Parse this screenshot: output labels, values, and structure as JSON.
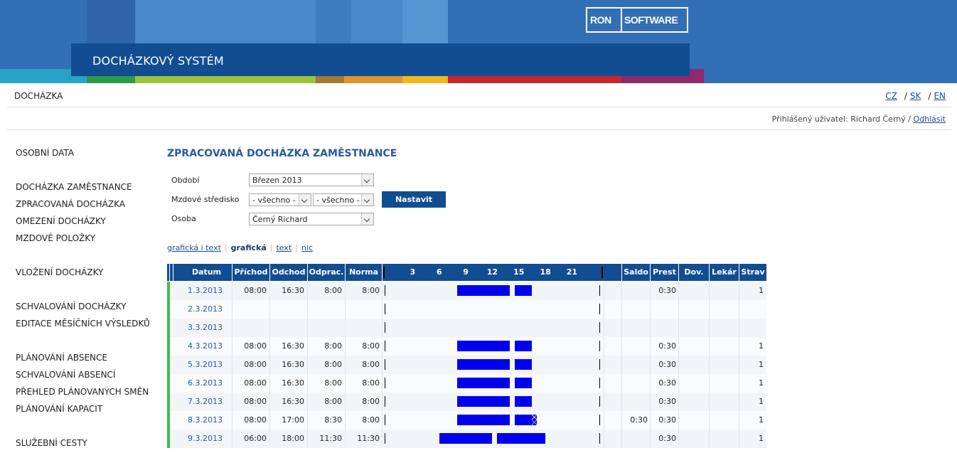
{
  "header": {
    "title": "DOCHÁZKOVÝ SYSTÉM",
    "logo_left": "RON",
    "logo_right": "SOFTWARE"
  },
  "topbar": {
    "section": "DOCHÁZKA",
    "languages": [
      "CZ",
      "SK",
      "EN"
    ],
    "lang_separator": "/"
  },
  "user": {
    "prefix": "Přihlášený uživatel: Richard Černý /",
    "logout": "Odhlásit"
  },
  "sidebar": {
    "items": [
      "OSOBNÍ DATA",
      "DOCHÁZKA ZAMĚSTNANCE",
      "ZPRACOVANÁ DOCHÁZKA",
      "OMEZENÍ DOCHÁZKY",
      "MZDOVÉ POLOŽKY",
      "VLOŽENÍ DOCHÁZKY",
      "SCHVALOVÁNÍ DOCHÁZKY",
      "EDITACE MĚSÍČNÍCH VÝSLEDKŮ",
      "PLÁNOVÁNÍ ABSENCE",
      "SCHVALOVÁNÍ ABSENCÍ",
      "PŘEHLED PLÁNOVANÝCH SMĚN",
      "PLÁNOVÁNÍ KAPACIT",
      "SLUŽEBNÍ CESTY"
    ]
  },
  "main": {
    "title": "ZPRACOVANÁ DOCHÁZKA ZAMĚSTNANCE",
    "form": {
      "period_label": "Období",
      "period_value": "Březen 2013",
      "center_label": "Mzdové středisko",
      "center_value_1": "- všechno -",
      "center_value_2": "- všechno -",
      "person_label": "Osoba",
      "person_value": "Černý Richard",
      "submit": "Nastavit"
    },
    "modes": {
      "graphic_text": "grafická i text",
      "graphic": "grafická",
      "text": "text",
      "none": "nic",
      "selected": "grafická"
    }
  },
  "table": {
    "columns": {
      "date": "Datum",
      "arrival": "Příchod",
      "departure": "Odchod",
      "worked": "Odprac.",
      "norm": "Norma",
      "saldo": "Saldo",
      "breaks": "Prest",
      "vacation": "Dov.",
      "doctor": "Lekár",
      "meals": "Strav"
    },
    "hour_ticks": [
      "3",
      "6",
      "9",
      "12",
      "15",
      "18",
      "21"
    ],
    "rows": [
      {
        "date": "1.3.2013",
        "in": "08:00",
        "out": "16:30",
        "worked": "8:00",
        "norm": "8:00",
        "saldo": "",
        "breaks": "0:30",
        "vac": "",
        "doc": "",
        "meals": "1",
        "status": "work",
        "bars": [
          [
            8,
            14
          ],
          [
            14.5,
            16.5
          ]
        ],
        "hatch": false
      },
      {
        "date": "2.3.2013",
        "in": "",
        "out": "",
        "worked": "",
        "norm": "",
        "saldo": "",
        "breaks": "",
        "vac": "",
        "doc": "",
        "meals": "",
        "status": "weekend",
        "bars": [],
        "hatch": false
      },
      {
        "date": "3.3.2013",
        "in": "",
        "out": "",
        "worked": "",
        "norm": "",
        "saldo": "",
        "breaks": "",
        "vac": "",
        "doc": "",
        "meals": "",
        "status": "weekend",
        "bars": [],
        "hatch": false
      },
      {
        "date": "4.3.2013",
        "in": "08:00",
        "out": "16:30",
        "worked": "8:00",
        "norm": "8:00",
        "saldo": "",
        "breaks": "0:30",
        "vac": "",
        "doc": "",
        "meals": "1",
        "status": "work",
        "bars": [
          [
            8,
            14
          ],
          [
            14.5,
            16.5
          ]
        ],
        "hatch": false
      },
      {
        "date": "5.3.2013",
        "in": "08:00",
        "out": "16:30",
        "worked": "8:00",
        "norm": "8:00",
        "saldo": "",
        "breaks": "0:30",
        "vac": "",
        "doc": "",
        "meals": "1",
        "status": "work",
        "bars": [
          [
            8,
            14
          ],
          [
            14.5,
            16.5
          ]
        ],
        "hatch": false
      },
      {
        "date": "6.3.2013",
        "in": "08:00",
        "out": "16:30",
        "worked": "8:00",
        "norm": "8:00",
        "saldo": "",
        "breaks": "0:30",
        "vac": "",
        "doc": "",
        "meals": "1",
        "status": "work",
        "bars": [
          [
            8,
            14
          ],
          [
            14.5,
            16.5
          ]
        ],
        "hatch": false
      },
      {
        "date": "7.3.2013",
        "in": "08:00",
        "out": "16:30",
        "worked": "8:00",
        "norm": "8:00",
        "saldo": "",
        "breaks": "0:30",
        "vac": "",
        "doc": "",
        "meals": "1",
        "status": "work",
        "bars": [
          [
            8,
            14
          ],
          [
            14.5,
            16.5
          ]
        ],
        "hatch": false
      },
      {
        "date": "8.3.2013",
        "in": "08:00",
        "out": "17:00",
        "worked": "8:30",
        "norm": "8:00",
        "saldo": "0:30",
        "breaks": "0:30",
        "vac": "",
        "doc": "",
        "meals": "1",
        "status": "work",
        "bars": [
          [
            8,
            14
          ],
          [
            14.5,
            17
          ]
        ],
        "hatch": true
      },
      {
        "date": "9.3.2013",
        "in": "06:00",
        "out": "18:00",
        "worked": "11:30",
        "norm": "11:30",
        "saldo": "",
        "breaks": "0:30",
        "vac": "",
        "doc": "",
        "meals": "1",
        "status": "work",
        "bars": [
          [
            6,
            12
          ],
          [
            12.5,
            18
          ]
        ],
        "hatch": false
      }
    ]
  },
  "colors": {
    "header_blue": "#336fb4",
    "title_blue": "#124d92",
    "status_green": "#3cc04c",
    "bar_blue": "#0000ee"
  }
}
